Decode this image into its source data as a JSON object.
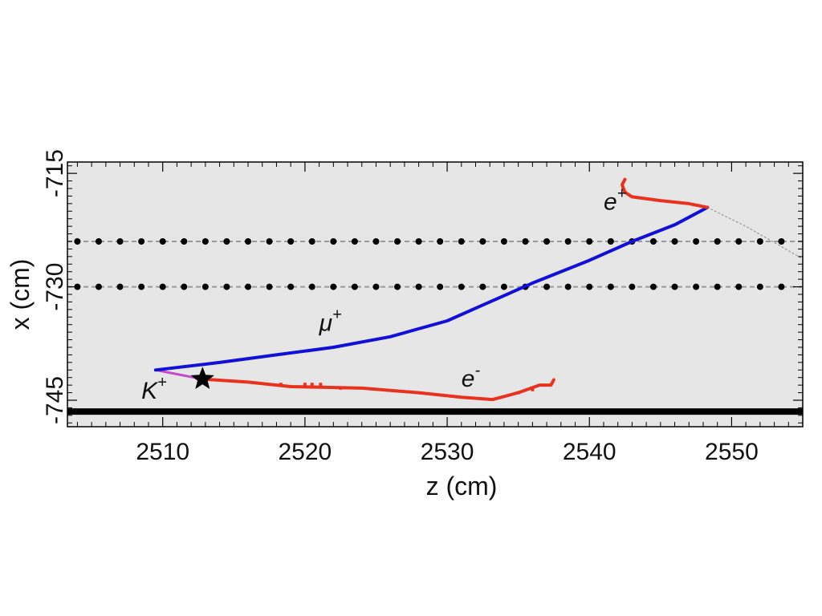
{
  "chart_data": {
    "type": "scatter",
    "title": "",
    "xlabel": "z (cm)",
    "ylabel": "x (cm)",
    "xlim": [
      2503.3,
      2555
    ],
    "ylim": [
      -748.5,
      -713.5
    ],
    "x_ticks": [
      2510,
      2520,
      2530,
      2540,
      2550
    ],
    "y_ticks": [
      -745,
      -730,
      -715
    ],
    "y_minor_step": 1,
    "x_minor_step": 1,
    "background": "#e6e6e6",
    "colors": {
      "track_mu": "#1010d8",
      "track_e": "#e8321e",
      "track_k": "#c04cc8",
      "wire": "#000000",
      "plate": "#000000",
      "dashed": "#9a9a9a"
    },
    "wire_rows": [
      {
        "y": -724.0,
        "x_start": 2504,
        "x_end": 2554,
        "x_step": 1.5
      },
      {
        "y": -730.0,
        "x_start": 2504,
        "x_end": 2554,
        "x_step": 1.5
      }
    ],
    "plate_y": -746.5,
    "star": {
      "x": 2512.8,
      "y": -742.2
    },
    "series": [
      {
        "label": "K+",
        "points": [
          [
            2509.5,
            -741.0
          ],
          [
            2512.8,
            -742.2
          ]
        ]
      },
      {
        "label": "μ+",
        "points": [
          [
            2509.5,
            -741.0
          ],
          [
            2514,
            -740.0
          ],
          [
            2518,
            -739.0
          ],
          [
            2522,
            -738.0
          ],
          [
            2526,
            -736.6
          ],
          [
            2530,
            -734.5
          ],
          [
            2533,
            -732.0
          ],
          [
            2536,
            -729.5
          ],
          [
            2540,
            -726.5
          ],
          [
            2543,
            -724.0
          ],
          [
            2546,
            -721.8
          ],
          [
            2548.3,
            -719.5
          ]
        ]
      },
      {
        "label": "μ+ continuation",
        "points": [
          [
            2548.3,
            -719.5
          ],
          [
            2551,
            -722.0
          ],
          [
            2555,
            -726.3
          ]
        ]
      },
      {
        "label": "e+",
        "points": [
          [
            2548.3,
            -719.5
          ],
          [
            2547,
            -719.0
          ],
          [
            2545,
            -718.6
          ],
          [
            2543,
            -718.1
          ],
          [
            2542.5,
            -717.5
          ],
          [
            2542.3,
            -716.5
          ],
          [
            2542.5,
            -715.8
          ]
        ]
      },
      {
        "label": "e-",
        "points": [
          [
            2512.8,
            -742.2
          ],
          [
            2516,
            -742.6
          ],
          [
            2519,
            -743.2
          ],
          [
            2524,
            -743.4
          ],
          [
            2528,
            -744.0
          ],
          [
            2531,
            -744.6
          ],
          [
            2533.2,
            -744.9
          ],
          [
            2535,
            -744.0
          ],
          [
            2536.5,
            -743.0
          ],
          [
            2537.3,
            -743.0
          ],
          [
            2537.5,
            -742.3
          ]
        ]
      }
    ],
    "dots": [
      [
        2518.3,
        -742.9
      ],
      [
        2520,
        -742.9
      ],
      [
        2520.5,
        -742.9
      ],
      [
        2521.1,
        -742.9
      ],
      [
        2522.5,
        -743.4
      ],
      [
        2535,
        -744.0
      ],
      [
        2536,
        -743.6
      ]
    ],
    "annotations": [
      {
        "text": "K",
        "sup": "+",
        "x": 2508.5,
        "y": -744.8
      },
      {
        "text": "μ",
        "sup": "+",
        "x": 2521,
        "y": -735.8
      },
      {
        "text": "e",
        "sup": "-",
        "x": 2531,
        "y": -743.2
      },
      {
        "text": "e",
        "sup": "+",
        "x": 2541,
        "y": -719.8
      }
    ]
  }
}
